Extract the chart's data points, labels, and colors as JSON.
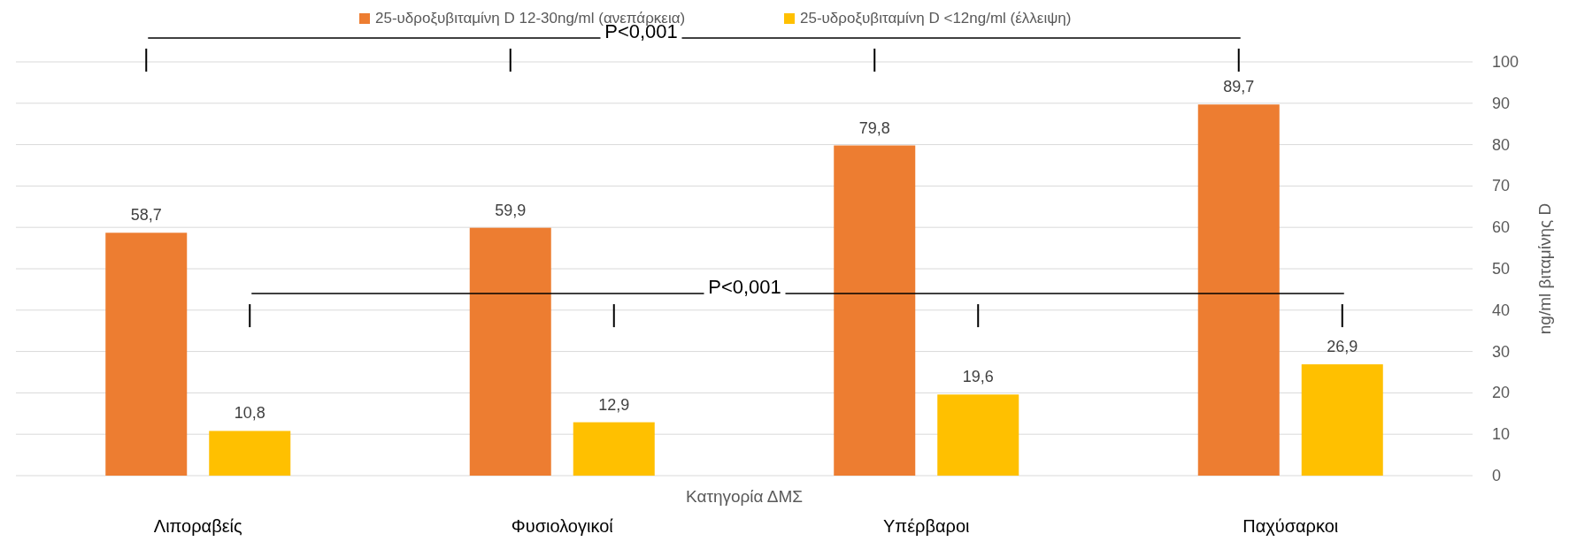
{
  "chart_data": {
    "type": "bar",
    "xlabel": "Κατηγορία ΔΜΣ",
    "ylabel": "ng/ml βιταμίνης D",
    "categories": [
      "Λιποραβείς",
      "Φυσιολογικοί",
      "Υπέρβαροι",
      "Παχύσαρκοι"
    ],
    "series": [
      {
        "name": "25-υδροξυβιταμίνη D 12-30ng/ml (ανεπάρκεια)",
        "color": "#ed7d31",
        "values": [
          58.7,
          59.9,
          79.8,
          89.7
        ],
        "value_labels": [
          "58,7",
          "59,9",
          "79,8",
          "89,7"
        ]
      },
      {
        "name": "25-υδροξυβιταμίνη D <12ng/ml (έλλειψη)",
        "color": "#ffc000",
        "values": [
          10.8,
          12.9,
          19.6,
          26.9
        ],
        "value_labels": [
          "10,8",
          "12,9",
          "19,6",
          "26,9"
        ]
      }
    ],
    "ylim": [
      0,
      100
    ],
    "yticks": [
      0,
      10,
      20,
      30,
      40,
      50,
      60,
      70,
      80,
      90,
      100
    ],
    "grid": "y",
    "legend": "top",
    "annotations": [
      "P<0,001",
      "P<0,001"
    ]
  }
}
